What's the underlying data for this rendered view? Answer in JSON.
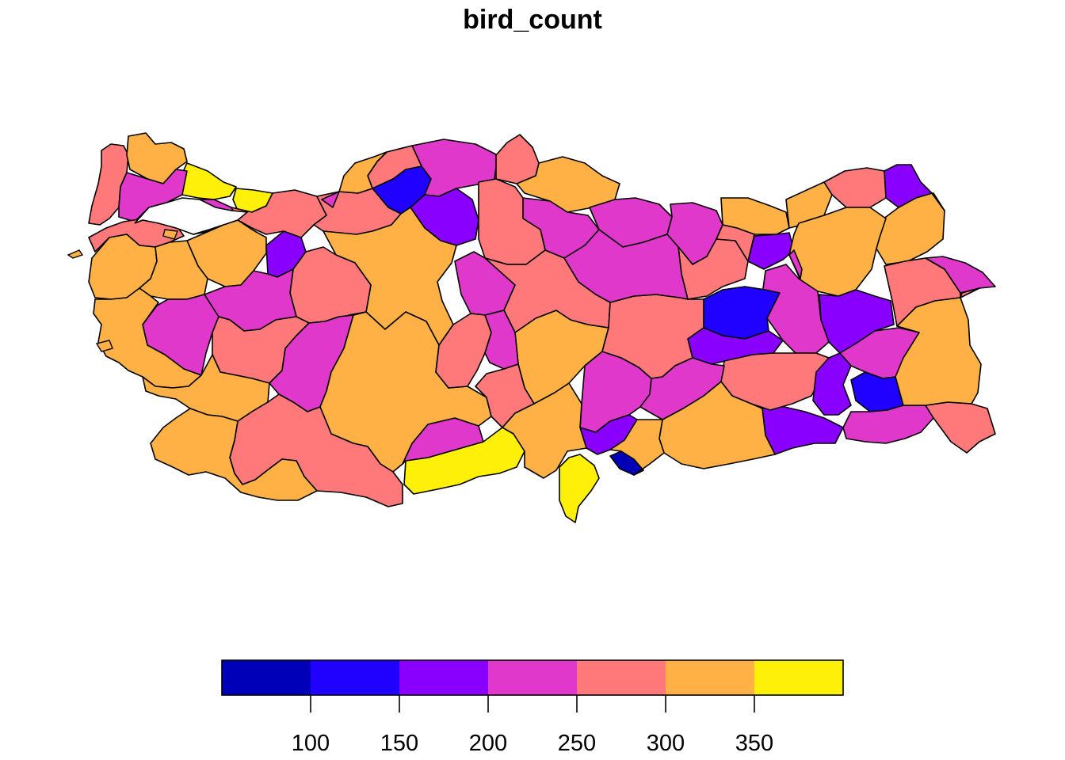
{
  "title": "bird_count",
  "legend": {
    "bins": [
      {
        "from": 50,
        "to": 100,
        "color": "#0000B8"
      },
      {
        "from": 100,
        "to": 150,
        "color": "#2000FF"
      },
      {
        "from": 150,
        "to": 200,
        "color": "#8A00FF"
      },
      {
        "from": 200,
        "to": 250,
        "color": "#E038CB"
      },
      {
        "from": 250,
        "to": 300,
        "color": "#FF787A"
      },
      {
        "from": 300,
        "to": 350,
        "color": "#FFB145"
      },
      {
        "from": 350,
        "to": 400,
        "color": "#FFF00A"
      }
    ],
    "ticks": [
      {
        "value": 100,
        "label": "100"
      },
      {
        "value": 150,
        "label": "150"
      },
      {
        "value": 200,
        "label": "200"
      },
      {
        "value": 250,
        "label": "250"
      },
      {
        "value": 300,
        "label": "300"
      },
      {
        "value": 350,
        "label": "350"
      }
    ]
  },
  "provinces": [
    {
      "id": "p01",
      "color": "#FF787A"
    },
    {
      "id": "p02",
      "color": "#FFB145"
    },
    {
      "id": "p03",
      "color": "#FFF00A"
    },
    {
      "id": "p04",
      "color": "#E038CB"
    },
    {
      "id": "p05",
      "color": "#FFF00A"
    },
    {
      "id": "p06",
      "color": "#FF787A"
    },
    {
      "id": "p07",
      "color": "#2000FF"
    },
    {
      "id": "p08",
      "color": "#E038CB"
    },
    {
      "id": "p09",
      "color": "#FF787A"
    },
    {
      "id": "p10",
      "color": "#FFB145"
    },
    {
      "id": "p11",
      "color": "#8A00FF"
    },
    {
      "id": "p12",
      "color": "#E038CB"
    },
    {
      "id": "p13",
      "color": "#FF787A"
    },
    {
      "id": "p14",
      "color": "#E038CB"
    },
    {
      "id": "p15",
      "color": "#E038CB"
    },
    {
      "id": "p16",
      "color": "#FF787A"
    },
    {
      "id": "p17",
      "color": "#FFB145"
    },
    {
      "id": "p18",
      "color": "#8A00FF"
    },
    {
      "id": "p19",
      "color": "#FFB145"
    },
    {
      "id": "p20",
      "color": "#FFB145"
    },
    {
      "id": "p21",
      "color": "#8A00FF"
    },
    {
      "id": "p22",
      "color": "#FF787A"
    },
    {
      "id": "p23",
      "color": "#FFB145"
    },
    {
      "id": "p24",
      "color": "#8A00FF"
    },
    {
      "id": "p25",
      "color": "#E038CB"
    },
    {
      "id": "p26",
      "color": "#FF787A"
    },
    {
      "id": "p27",
      "color": "#E038CB"
    },
    {
      "id": "p28",
      "color": "#E038CB"
    },
    {
      "id": "p29",
      "color": "#FF787A"
    },
    {
      "id": "p30",
      "color": "#FFB145"
    },
    {
      "id": "p31",
      "color": "#E038CB"
    },
    {
      "id": "p32",
      "color": "#FFB145"
    },
    {
      "id": "p33",
      "color": "#FFB145"
    },
    {
      "id": "p34",
      "color": "#E038CB"
    },
    {
      "id": "p35",
      "color": "#8A00FF"
    },
    {
      "id": "p36",
      "color": "#FF787A"
    },
    {
      "id": "p37",
      "color": "#FF787A"
    },
    {
      "id": "p38",
      "color": "#E038CB"
    },
    {
      "id": "p39",
      "color": "#FFB145"
    },
    {
      "id": "p40",
      "color": "#FF787A"
    },
    {
      "id": "p41",
      "color": "#FFB145"
    },
    {
      "id": "p42",
      "color": "#E038CB"
    },
    {
      "id": "p43",
      "color": "#FF787A"
    },
    {
      "id": "p44",
      "color": "#FFB145"
    },
    {
      "id": "p45",
      "color": "#E038CB"
    },
    {
      "id": "p46",
      "color": "#FFF00A"
    },
    {
      "id": "p47",
      "color": "#E038CB"
    },
    {
      "id": "p48",
      "color": "#FFB145"
    },
    {
      "id": "p49",
      "color": "#FF787A"
    },
    {
      "id": "p50",
      "color": "#FFB145"
    },
    {
      "id": "p51",
      "color": "#FFF00A"
    },
    {
      "id": "p52",
      "color": "#0000B8"
    },
    {
      "id": "p53",
      "color": "#E038CB"
    },
    {
      "id": "p54",
      "color": "#FF787A"
    },
    {
      "id": "p55",
      "color": "#FFB145"
    },
    {
      "id": "p56",
      "color": "#FF787A"
    },
    {
      "id": "p57",
      "color": "#E038CB"
    },
    {
      "id": "p58",
      "color": "#E038CB"
    },
    {
      "id": "p59",
      "color": "#8A00FF"
    },
    {
      "id": "p60",
      "color": "#2000FF"
    },
    {
      "id": "p61",
      "color": "#8A00FF"
    },
    {
      "id": "p62",
      "color": "#8A00FF"
    },
    {
      "id": "p63",
      "color": "#FF787A"
    },
    {
      "id": "p64",
      "color": "#FFB145"
    },
    {
      "id": "p65",
      "color": "#8A00FF"
    },
    {
      "id": "p66",
      "color": "#2000FF"
    },
    {
      "id": "p67",
      "color": "#E038CB"
    },
    {
      "id": "p68",
      "color": "#FF787A"
    },
    {
      "id": "p69",
      "color": "#FFB145"
    },
    {
      "id": "p70",
      "color": "#FF787A"
    },
    {
      "id": "p71",
      "color": "#FF787A"
    },
    {
      "id": "p72",
      "color": "#FFB145"
    },
    {
      "id": "p73",
      "color": "#E038CB"
    },
    {
      "id": "p74",
      "color": "#E038CB"
    },
    {
      "id": "p75",
      "color": "#FFB145"
    },
    {
      "id": "p76",
      "color": "#FF787A"
    },
    {
      "id": "p77",
      "color": "#FFB145"
    },
    {
      "id": "p78",
      "color": "#FF787A"
    },
    {
      "id": "p79",
      "color": "#FFB145"
    },
    {
      "id": "p80",
      "color": "#E038CB"
    },
    {
      "id": "p81",
      "color": "#FF787A"
    }
  ]
}
